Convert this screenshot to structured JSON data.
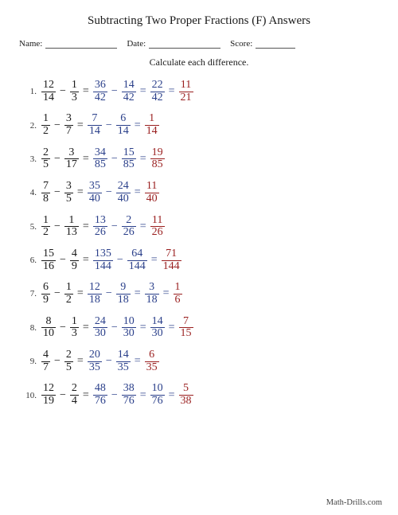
{
  "title": "Subtracting Two Proper Fractions (F) Answers",
  "labels": {
    "name": "Name:",
    "date": "Date:",
    "score": "Score:"
  },
  "instruction": "Calculate each difference.",
  "footer": "Math-Drills.com",
  "colors": {
    "black": "#1a1a1a",
    "blue": "#2a3f8a",
    "red": "#9a1f1f"
  },
  "line_widths": {
    "name": 90,
    "date": 90,
    "score": 50
  },
  "problems": [
    {
      "n": "1.",
      "a": {
        "n": "12",
        "d": "14"
      },
      "b": {
        "n": "1",
        "d": "3"
      },
      "c1": {
        "n": "36",
        "d": "42"
      },
      "c2": {
        "n": "14",
        "d": "42"
      },
      "diff": {
        "n": "22",
        "d": "42"
      },
      "simp": {
        "n": "11",
        "d": "21"
      }
    },
    {
      "n": "2.",
      "a": {
        "n": "1",
        "d": "2"
      },
      "b": {
        "n": "3",
        "d": "7"
      },
      "c1": {
        "n": "7",
        "d": "14"
      },
      "c2": {
        "n": "6",
        "d": "14"
      },
      "diff": {
        "n": "1",
        "d": "14"
      },
      "simp": null
    },
    {
      "n": "3.",
      "a": {
        "n": "2",
        "d": "5"
      },
      "b": {
        "n": "3",
        "d": "17"
      },
      "c1": {
        "n": "34",
        "d": "85"
      },
      "c2": {
        "n": "15",
        "d": "85"
      },
      "diff": {
        "n": "19",
        "d": "85"
      },
      "simp": null
    },
    {
      "n": "4.",
      "a": {
        "n": "7",
        "d": "8"
      },
      "b": {
        "n": "3",
        "d": "5"
      },
      "c1": {
        "n": "35",
        "d": "40"
      },
      "c2": {
        "n": "24",
        "d": "40"
      },
      "diff": {
        "n": "11",
        "d": "40"
      },
      "simp": null
    },
    {
      "n": "5.",
      "a": {
        "n": "1",
        "d": "2"
      },
      "b": {
        "n": "1",
        "d": "13"
      },
      "c1": {
        "n": "13",
        "d": "26"
      },
      "c2": {
        "n": "2",
        "d": "26"
      },
      "diff": {
        "n": "11",
        "d": "26"
      },
      "simp": null
    },
    {
      "n": "6.",
      "a": {
        "n": "15",
        "d": "16"
      },
      "b": {
        "n": "4",
        "d": "9"
      },
      "c1": {
        "n": "135",
        "d": "144"
      },
      "c2": {
        "n": "64",
        "d": "144"
      },
      "diff": {
        "n": "71",
        "d": "144"
      },
      "simp": null
    },
    {
      "n": "7.",
      "a": {
        "n": "6",
        "d": "9"
      },
      "b": {
        "n": "1",
        "d": "2"
      },
      "c1": {
        "n": "12",
        "d": "18"
      },
      "c2": {
        "n": "9",
        "d": "18"
      },
      "diff": {
        "n": "3",
        "d": "18"
      },
      "simp": {
        "n": "1",
        "d": "6"
      }
    },
    {
      "n": "8.",
      "a": {
        "n": "8",
        "d": "10"
      },
      "b": {
        "n": "1",
        "d": "3"
      },
      "c1": {
        "n": "24",
        "d": "30"
      },
      "c2": {
        "n": "10",
        "d": "30"
      },
      "diff": {
        "n": "14",
        "d": "30"
      },
      "simp": {
        "n": "7",
        "d": "15"
      }
    },
    {
      "n": "9.",
      "a": {
        "n": "4",
        "d": "7"
      },
      "b": {
        "n": "2",
        "d": "5"
      },
      "c1": {
        "n": "20",
        "d": "35"
      },
      "c2": {
        "n": "14",
        "d": "35"
      },
      "diff": {
        "n": "6",
        "d": "35"
      },
      "simp": null
    },
    {
      "n": "10.",
      "a": {
        "n": "12",
        "d": "19"
      },
      "b": {
        "n": "2",
        "d": "4"
      },
      "c1": {
        "n": "48",
        "d": "76"
      },
      "c2": {
        "n": "38",
        "d": "76"
      },
      "diff": {
        "n": "10",
        "d": "76"
      },
      "simp": {
        "n": "5",
        "d": "38"
      }
    }
  ]
}
